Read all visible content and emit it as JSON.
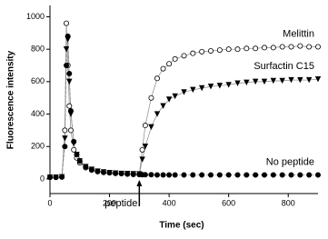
{
  "chart_data": {
    "type": "line",
    "x_label": "Time (sec)",
    "y_label": "Fluorescence intensity",
    "x": [
      0,
      20,
      40,
      50,
      55,
      60,
      65,
      70,
      80,
      90,
      100,
      120,
      140,
      160,
      180,
      200,
      220,
      240,
      260,
      280,
      300,
      310,
      320,
      340,
      360,
      380,
      400,
      420,
      450,
      480,
      510,
      540,
      570,
      600,
      630,
      660,
      690,
      720,
      750,
      780,
      810,
      840,
      870,
      900
    ],
    "series": [
      {
        "name": "Melittin",
        "color": "#000000",
        "marker": "open-circle",
        "values": [
          10,
          10,
          12,
          300,
          960,
          700,
          450,
          300,
          180,
          130,
          100,
          70,
          55,
          45,
          40,
          38,
          35,
          33,
          32,
          31,
          30,
          180,
          330,
          500,
          620,
          680,
          710,
          740,
          760,
          775,
          785,
          790,
          795,
          800,
          800,
          805,
          805,
          810,
          810,
          815,
          815,
          820,
          815,
          815
        ]
      },
      {
        "name": "Surfactin C15",
        "color": "#000000",
        "marker": "triangle-down",
        "values": [
          10,
          10,
          12,
          250,
          800,
          860,
          600,
          400,
          220,
          150,
          110,
          75,
          58,
          47,
          42,
          38,
          35,
          33,
          32,
          31,
          30,
          120,
          200,
          320,
          400,
          450,
          490,
          510,
          535,
          550,
          560,
          570,
          575,
          580,
          590,
          595,
          600,
          600,
          605,
          605,
          610,
          610,
          610,
          615
        ]
      },
      {
        "name": "No peptide",
        "color": "#000000",
        "marker": "filled-circle",
        "values": [
          10,
          10,
          12,
          200,
          700,
          880,
          650,
          420,
          230,
          150,
          110,
          75,
          58,
          47,
          42,
          38,
          35,
          33,
          30,
          28,
          27,
          26,
          26,
          26,
          25,
          25,
          25,
          25,
          25,
          25,
          25,
          25,
          25,
          25,
          25,
          25,
          25,
          25,
          25,
          25,
          25,
          25,
          25,
          25
        ]
      }
    ],
    "annotations": [
      {
        "text": "peptide",
        "x": 300
      }
    ],
    "xlim": [
      0,
      900
    ],
    "xticks": [
      0,
      200,
      400,
      600,
      800
    ],
    "ylim": [
      -90,
      1070
    ],
    "yticks": [
      0,
      200,
      400,
      600,
      800,
      1000
    ]
  }
}
